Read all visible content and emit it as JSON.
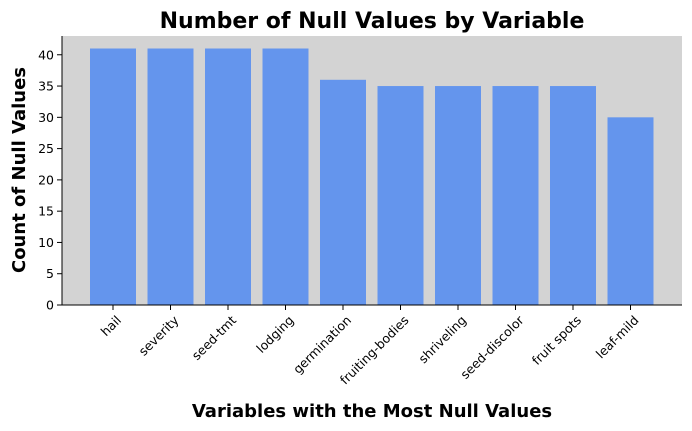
{
  "chart_data": {
    "type": "bar",
    "title": "Number of Null Values by Variable",
    "xlabel": "Variables with the Most Null Values",
    "ylabel": "Count of Null Values",
    "categories": [
      "hail",
      "severity",
      "seed-tmt",
      "lodging",
      "germination",
      "fruiting-bodies",
      "shriveling",
      "seed-discolor",
      "fruit spots",
      "leaf-mild"
    ],
    "values": [
      41,
      41,
      41,
      41,
      36,
      35,
      35,
      35,
      35,
      30
    ],
    "ylim": [
      0,
      43
    ],
    "yticks": [
      0,
      5,
      10,
      15,
      20,
      25,
      30,
      35,
      40
    ],
    "grid": false,
    "colors": {
      "bar": "#6495ED",
      "plot_background": "#D3D3D3",
      "axis": "#000000"
    }
  }
}
